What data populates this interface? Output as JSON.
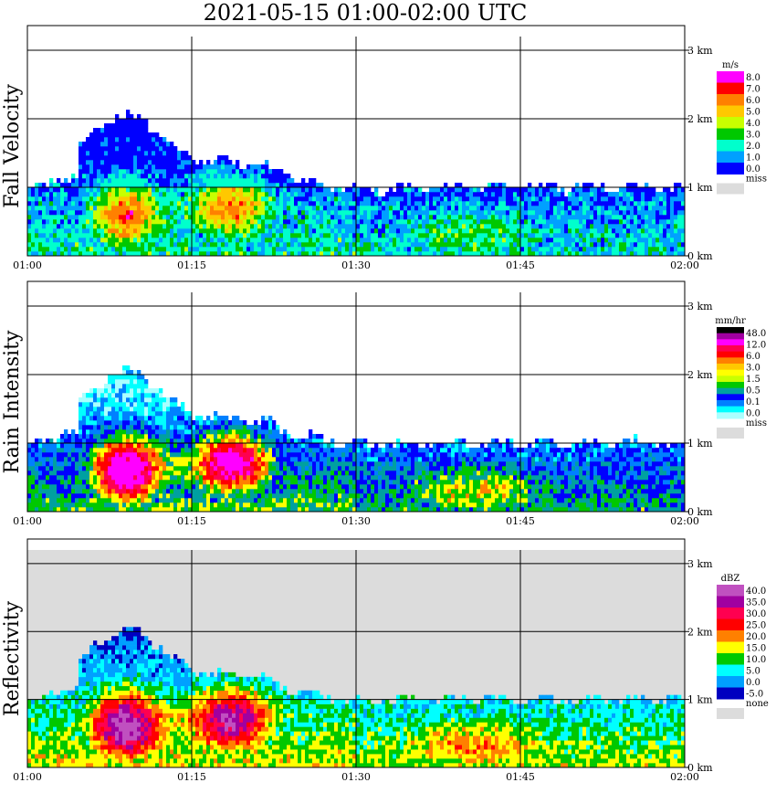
{
  "title": "2021-05-15   01:00-02:00 UTC",
  "x_ticks": [
    "01:00",
    "01:15",
    "01:30",
    "01:45",
    "02:00"
  ],
  "y_ticks": [
    "0 km",
    "1 km",
    "2 km",
    "3 km"
  ],
  "colors": {
    "missing": "#dcdcdc",
    "grid": "#000000"
  },
  "chart_data": [
    {
      "type": "heatmap",
      "panel_label": "Fall Velocity",
      "unit": "m/s",
      "x_range": [
        "01:00",
        "02:00"
      ],
      "y_range_km": [
        0,
        3.2
      ],
      "legend_labels": [
        "8.0",
        "7.0",
        "6.0",
        "5.0",
        "4.0",
        "3.0",
        "2.0",
        "1.0",
        "0.0"
      ],
      "legend_colors": [
        "#ff00ff",
        "#ff0000",
        "#ff8000",
        "#ffc800",
        "#c8ff00",
        "#00c800",
        "#00ffcc",
        "#00a0ff",
        "#0000ff"
      ],
      "missing_label": "miss",
      "grid": true
    },
    {
      "type": "heatmap",
      "panel_label": "Rain Intensity",
      "unit": "mm/hr",
      "x_range": [
        "01:00",
        "02:00"
      ],
      "y_range_km": [
        0,
        3.2
      ],
      "legend_labels": [
        "48.0",
        "12.0",
        "6.0",
        "3.0",
        "1.5",
        "0.5",
        "0.1",
        "0.0"
      ],
      "legend_colors": [
        "#000000",
        "#a000a0",
        "#ff00ff",
        "#ff0050",
        "#ff0000",
        "#ff8000",
        "#ffc800",
        "#ffff00",
        "#c8ff00",
        "#00c800",
        "#00a0a0",
        "#0000ff",
        "#0080ff",
        "#00ffff",
        "#aaffff"
      ],
      "missing_label": "miss",
      "grid": true
    },
    {
      "type": "heatmap",
      "panel_label": "Reflectivity",
      "unit": "dBZ",
      "x_range": [
        "01:00",
        "02:00"
      ],
      "y_range_km": [
        0,
        3.2
      ],
      "legend_labels": [
        "40.0",
        "35.0",
        "30.0",
        "25.0",
        "20.0",
        "15.0",
        "10.0",
        "5.0",
        "0.0",
        "-5.0"
      ],
      "legend_colors": [
        "#c050c0",
        "#a000a0",
        "#ff0050",
        "#ff0000",
        "#ff8000",
        "#ffff00",
        "#00c800",
        "#00ffff",
        "#00a0ff",
        "#0000c0"
      ],
      "missing_label": "none",
      "grid": true
    }
  ]
}
